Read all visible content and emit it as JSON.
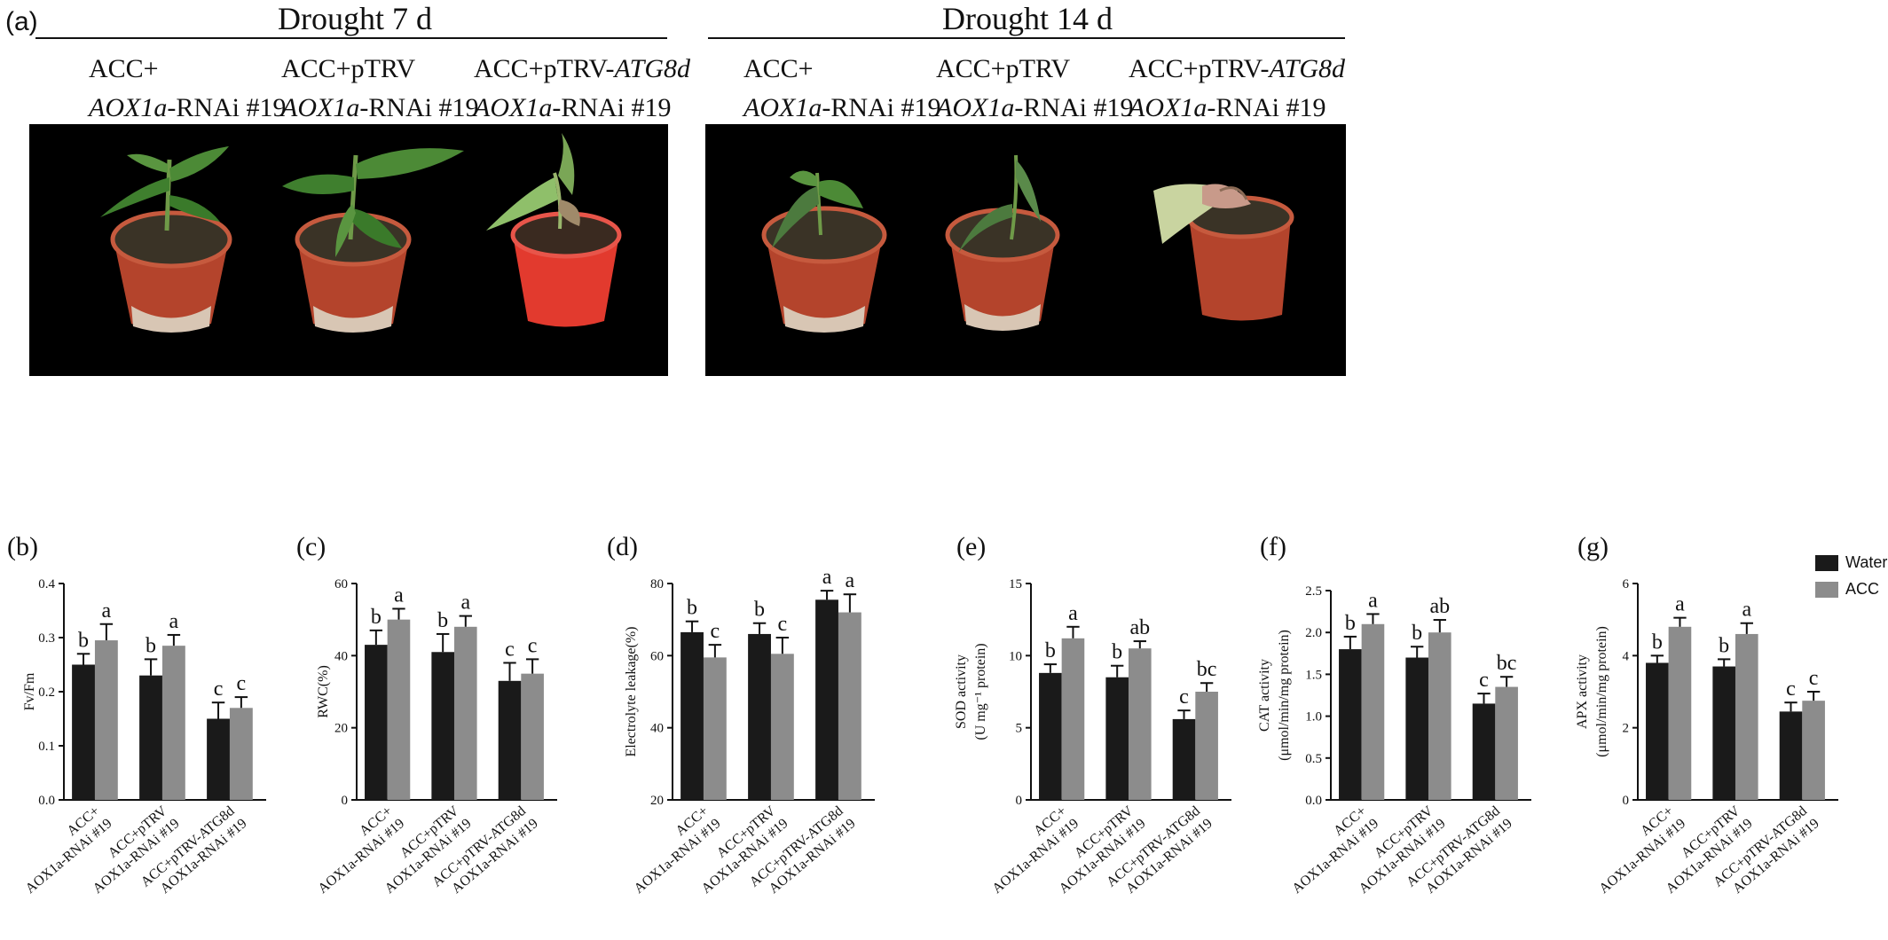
{
  "header": {
    "panel_a_label": "(a)",
    "left_title": "Drought 7 d",
    "right_title": "Drought 14 d"
  },
  "genotypes": [
    {
      "line1": "ACC+",
      "line1_italic": "",
      "line2_italic": "AOX1a",
      "line2": "-RNAi #19"
    },
    {
      "line1": "ACC+pTRV",
      "line1_italic": "",
      "line2_italic": "AOX1a",
      "line2": "-RNAi #19"
    },
    {
      "line1": "ACC+pTRV-",
      "line1_italic": "ATG8d",
      "line2_italic": "AOX1a",
      "line2": "-RNAi #19"
    }
  ],
  "legend": {
    "items": [
      {
        "label": "Water",
        "color": "#1a1a1a"
      },
      {
        "label": "ACC",
        "color": "#8c8c8c"
      }
    ]
  },
  "colors": {
    "water": "#1a1a1a",
    "acc": "#8c8c8c",
    "pot": "#b4442c",
    "photo_bg": "#000000"
  },
  "x_tick_labels": [
    {
      "line1": "ACC+",
      "line2": "AOX1a-RNAi #19"
    },
    {
      "line1": "ACC+pTRV",
      "line2": "AOX1a-RNAi #19"
    },
    {
      "line1": "ACC+pTRV-ATG8d",
      "line2": "AOX1a-RNAi #19"
    }
  ],
  "chart_data": [
    {
      "panel": "(b)",
      "type": "bar",
      "ylabel": "Fv/Fm",
      "ylabel2": "",
      "ylim": [
        0,
        0.4
      ],
      "yticks": [
        "0.0",
        "0.1",
        "0.2",
        "0.3",
        "0.4"
      ],
      "categories": [
        "ACC+ AOX1a-RNAi #19",
        "ACC+pTRV AOX1a-RNAi #19",
        "ACC+pTRV-ATG8d AOX1a-RNAi #19"
      ],
      "series": [
        {
          "name": "Water",
          "values": [
            0.25,
            0.23,
            0.15
          ],
          "errors": [
            0.02,
            0.03,
            0.03
          ],
          "letters": [
            "b",
            "b",
            "c"
          ]
        },
        {
          "name": "ACC",
          "values": [
            0.295,
            0.285,
            0.17
          ],
          "errors": [
            0.03,
            0.02,
            0.02
          ],
          "letters": [
            "a",
            "a",
            "c"
          ]
        }
      ]
    },
    {
      "panel": "(c)",
      "type": "bar",
      "ylabel": "RWC(%)",
      "ylabel2": "",
      "ylim": [
        0,
        60
      ],
      "yticks": [
        "0",
        "20",
        "40",
        "60"
      ],
      "categories": [
        "ACC+ AOX1a-RNAi #19",
        "ACC+pTRV AOX1a-RNAi #19",
        "ACC+pTRV-ATG8d AOX1a-RNAi #19"
      ],
      "series": [
        {
          "name": "Water",
          "values": [
            43,
            41,
            33
          ],
          "errors": [
            4,
            5,
            5
          ],
          "letters": [
            "b",
            "b",
            "c"
          ]
        },
        {
          "name": "ACC",
          "values": [
            50,
            48,
            35
          ],
          "errors": [
            3,
            3,
            4
          ],
          "letters": [
            "a",
            "a",
            "c"
          ]
        }
      ]
    },
    {
      "panel": "(d)",
      "type": "bar",
      "ylabel": "Electrolyte leakage(%)",
      "ylabel2": "",
      "ylim": [
        20,
        80
      ],
      "yticks": [
        "20",
        "40",
        "60",
        "80"
      ],
      "categories": [
        "ACC+ AOX1a-RNAi #19",
        "ACC+pTRV AOX1a-RNAi #19",
        "ACC+pTRV-ATG8d AOX1a-RNAi #19"
      ],
      "series": [
        {
          "name": "Water",
          "values": [
            66.5,
            66,
            75.5
          ],
          "errors": [
            3,
            3,
            2.5
          ],
          "letters": [
            "b",
            "b",
            "a"
          ]
        },
        {
          "name": "ACC",
          "values": [
            59.5,
            60.5,
            72
          ],
          "errors": [
            3.5,
            4.5,
            5
          ],
          "letters": [
            "c",
            "c",
            "a"
          ]
        }
      ]
    },
    {
      "panel": "(e)",
      "type": "bar",
      "ylabel": "SOD activity",
      "ylabel2": "(U mg⁻¹ protein)",
      "ylim": [
        0,
        15
      ],
      "yticks": [
        "0",
        "5",
        "10",
        "15"
      ],
      "categories": [
        "ACC+ AOX1a-RNAi #19",
        "ACC+pTRV AOX1a-RNAi #19",
        "ACC+pTRV-ATG8d AOX1a-RNAi #19"
      ],
      "series": [
        {
          "name": "Water",
          "values": [
            8.8,
            8.5,
            5.6
          ],
          "errors": [
            0.6,
            0.8,
            0.6
          ],
          "letters": [
            "b",
            "b",
            "c"
          ]
        },
        {
          "name": "ACC",
          "values": [
            11.2,
            10.5,
            7.5
          ],
          "errors": [
            0.8,
            0.5,
            0.6
          ],
          "letters": [
            "a",
            "ab",
            "bc"
          ]
        }
      ]
    },
    {
      "panel": "(f)",
      "type": "bar",
      "ylabel": "CAT activity",
      "ylabel2": "(μmol/min/mg protein)",
      "ylim": [
        0,
        2.5
      ],
      "yticks": [
        "0.0",
        "0.5",
        "1.0",
        "1.5",
        "2.0",
        "2.5"
      ],
      "categories": [
        "ACC+ AOX1a-RNAi #19",
        "ACC+pTRV AOX1a-RNAi #19",
        "ACC+pTRV-ATG8d AOX1a-RNAi #19"
      ],
      "series": [
        {
          "name": "Water",
          "values": [
            1.8,
            1.7,
            1.15
          ],
          "errors": [
            0.15,
            0.13,
            0.12
          ],
          "letters": [
            "b",
            "b",
            "c"
          ]
        },
        {
          "name": "ACC",
          "values": [
            2.1,
            2.0,
            1.35
          ],
          "errors": [
            0.12,
            0.15,
            0.12
          ],
          "letters": [
            "a",
            "ab",
            "bc"
          ]
        }
      ]
    },
    {
      "panel": "(g)",
      "type": "bar",
      "ylabel": "APX activity",
      "ylabel2": "(μmol/min/mg protein)",
      "ylim": [
        0,
        6
      ],
      "yticks": [
        "0",
        "2",
        "4",
        "6"
      ],
      "categories": [
        "ACC+ AOX1a-RNAi #19",
        "ACC+pTRV AOX1a-RNAi #19",
        "ACC+pTRV-ATG8d AOX1a-RNAi #19"
      ],
      "series": [
        {
          "name": "Water",
          "values": [
            3.8,
            3.7,
            2.45
          ],
          "errors": [
            0.2,
            0.2,
            0.25
          ],
          "letters": [
            "b",
            "b",
            "c"
          ]
        },
        {
          "name": "ACC",
          "values": [
            4.8,
            4.6,
            2.75
          ],
          "errors": [
            0.25,
            0.3,
            0.25
          ],
          "letters": [
            "a",
            "a",
            "c"
          ]
        }
      ]
    }
  ]
}
